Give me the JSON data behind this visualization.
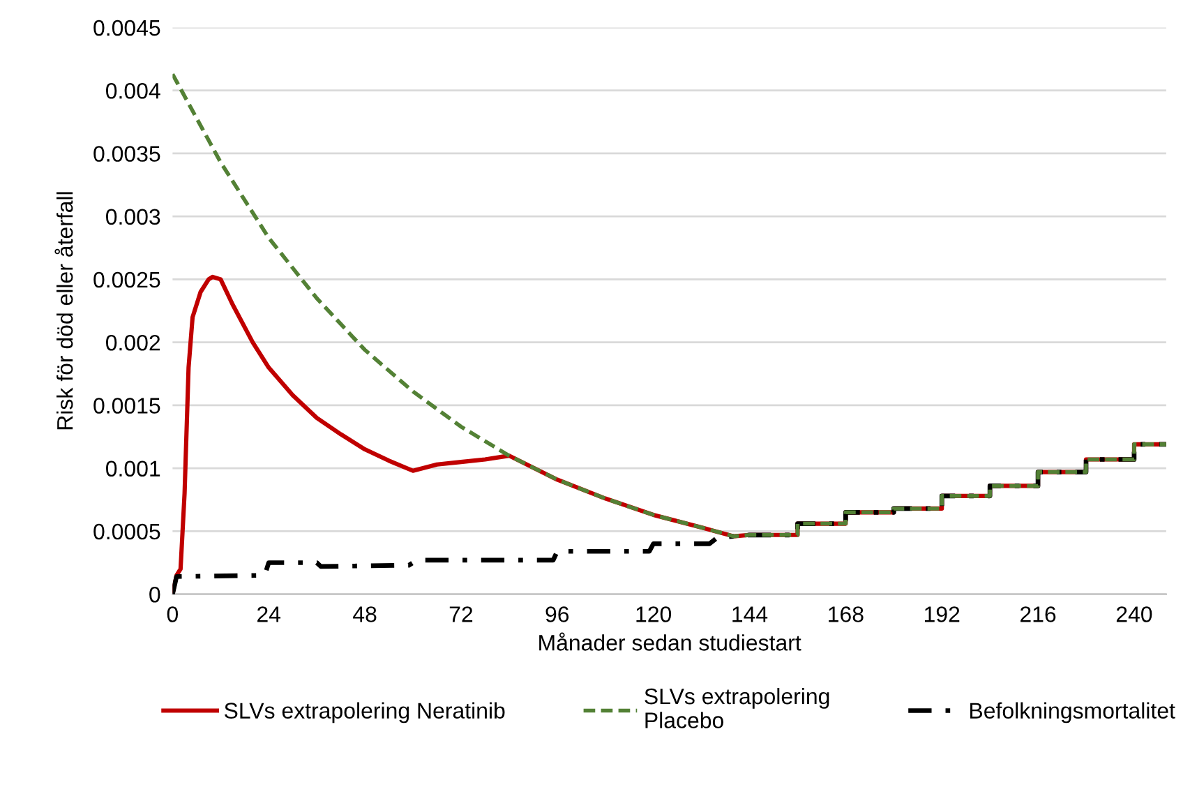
{
  "chart_data": {
    "type": "line",
    "xlabel": "Månader sedan studiestart",
    "ylabel": "Risk för död eller återfall",
    "xlim": [
      0,
      248
    ],
    "xticks": [
      0,
      24,
      48,
      72,
      96,
      120,
      144,
      168,
      192,
      216,
      240
    ],
    "ylim": [
      0,
      0.0045
    ],
    "yticks": [
      0,
      0.0005,
      0.001,
      0.0015,
      0.002,
      0.0025,
      0.003,
      0.0035,
      0.004,
      0.0045
    ],
    "grid": "y",
    "legend": "bottom",
    "marker": "none",
    "series": [
      {
        "name": "SLVs extrapolering Neratinib",
        "color": "#c00000",
        "line_style": "solid",
        "x": [
          0,
          1,
          2,
          3,
          4,
          5,
          7,
          9,
          10,
          12,
          15,
          20,
          24,
          30,
          36,
          42,
          48,
          54,
          60,
          66,
          72,
          78,
          84,
          96,
          108,
          120,
          132,
          140,
          144,
          156,
          156,
          168,
          168,
          180,
          180,
          192,
          192,
          204,
          204,
          216,
          216,
          228,
          228,
          240,
          240,
          248
        ],
        "values": [
          0,
          0.00015,
          0.0002,
          0.0008,
          0.0018,
          0.0022,
          0.0024,
          0.0025,
          0.00252,
          0.0025,
          0.0023,
          0.002,
          0.0018,
          0.00158,
          0.0014,
          0.00127,
          0.00115,
          0.00106,
          0.00098,
          0.00103,
          0.00105,
          0.00107,
          0.0011,
          0.00091,
          0.00076,
          0.00063,
          0.00053,
          0.00046,
          0.00047,
          0.00047,
          0.00056,
          0.00056,
          0.00065,
          0.00065,
          0.00068,
          0.00068,
          0.00078,
          0.00078,
          0.00086,
          0.00086,
          0.00097,
          0.00097,
          0.00107,
          0.00107,
          0.00119,
          0.00119
        ]
      },
      {
        "name": "SLVs extrapolering\nPlacebo",
        "color": "#538135",
        "line_style": "dashed",
        "x": [
          0,
          12,
          24,
          36,
          48,
          60,
          72,
          84,
          96,
          108,
          120,
          132,
          140,
          144,
          156,
          156,
          168,
          168,
          180,
          180,
          192,
          192,
          204,
          204,
          216,
          216,
          228,
          228,
          240,
          240,
          248
        ],
        "values": [
          0.00413,
          0.00343,
          0.00283,
          0.00235,
          0.00194,
          0.00161,
          0.00133,
          0.0011,
          0.00091,
          0.00076,
          0.00063,
          0.00053,
          0.00046,
          0.00047,
          0.00047,
          0.00056,
          0.00056,
          0.00065,
          0.00065,
          0.00068,
          0.00068,
          0.00078,
          0.00078,
          0.00086,
          0.00086,
          0.00097,
          0.00097,
          0.00107,
          0.00107,
          0.00119,
          0.00119
        ]
      },
      {
        "name": "Befolkningsmortalitet",
        "color": "#000000",
        "line_style": "dashdot",
        "x": [
          0,
          1,
          23,
          24,
          36,
          37,
          59,
          61,
          95,
          96,
          119,
          120,
          134,
          136,
          144,
          156,
          156,
          168,
          168,
          180,
          180,
          192,
          192,
          204,
          204,
          216,
          216,
          228,
          228,
          240,
          240,
          248
        ],
        "values": [
          0,
          0.00014,
          0.00015,
          0.00025,
          0.00025,
          0.00022,
          0.00023,
          0.00027,
          0.00027,
          0.00034,
          0.00034,
          0.0004,
          0.0004,
          0.00045,
          0.00047,
          0.00047,
          0.00056,
          0.00056,
          0.00065,
          0.00065,
          0.00068,
          0.00068,
          0.00078,
          0.00078,
          0.00086,
          0.00086,
          0.00097,
          0.00097,
          0.00107,
          0.00107,
          0.00119,
          0.00119
        ]
      }
    ]
  }
}
